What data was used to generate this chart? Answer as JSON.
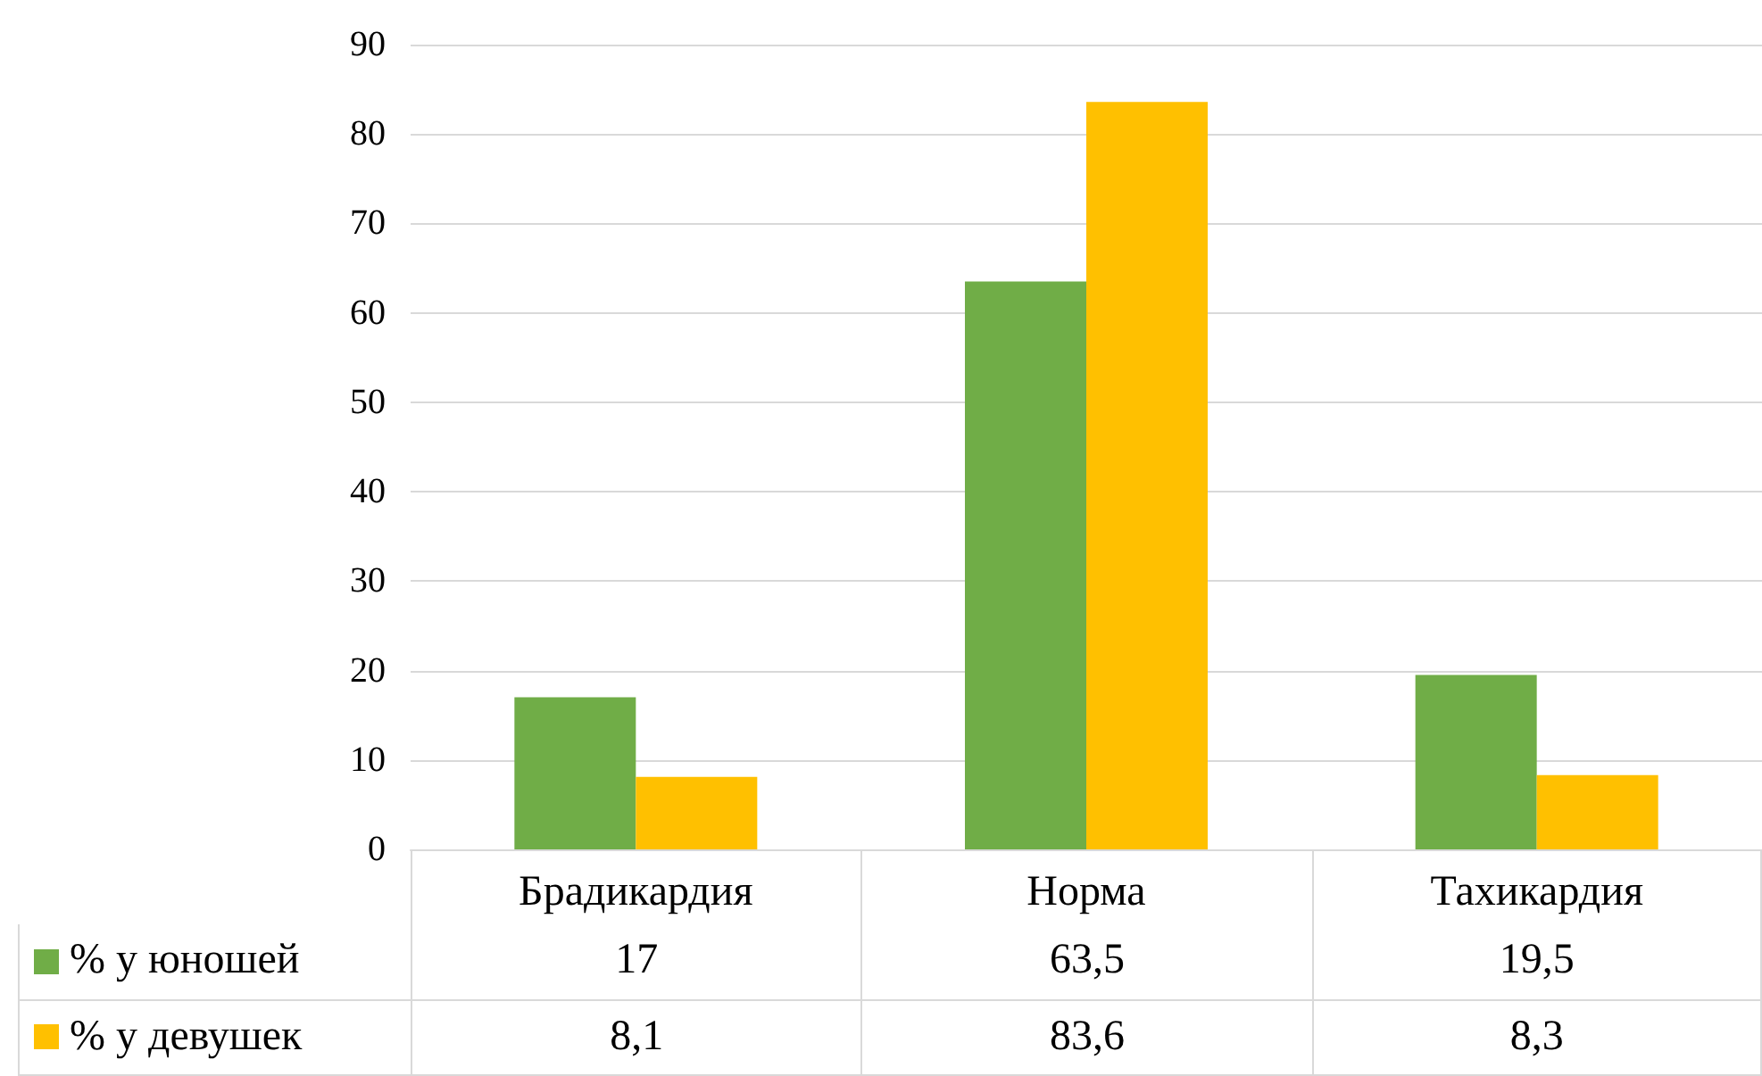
{
  "chart_data": {
    "type": "bar",
    "categories": [
      "Брадикардия",
      "Норма",
      "Тахикардия"
    ],
    "series": [
      {
        "name": "% у юношей",
        "color": "#70ad47",
        "values": [
          17,
          63.5,
          19.5
        ],
        "value_labels": [
          "17",
          "63,5",
          "19,5"
        ]
      },
      {
        "name": "% у девушек",
        "color": "#ffc000",
        "values": [
          8.1,
          83.6,
          8.3
        ],
        "value_labels": [
          "8,1",
          "83,6",
          "8,3"
        ]
      }
    ],
    "ylim": [
      0,
      90
    ],
    "yticks": [
      0,
      10,
      20,
      30,
      40,
      50,
      60,
      70,
      80,
      90
    ],
    "grid": true,
    "legend": "bottom"
  }
}
